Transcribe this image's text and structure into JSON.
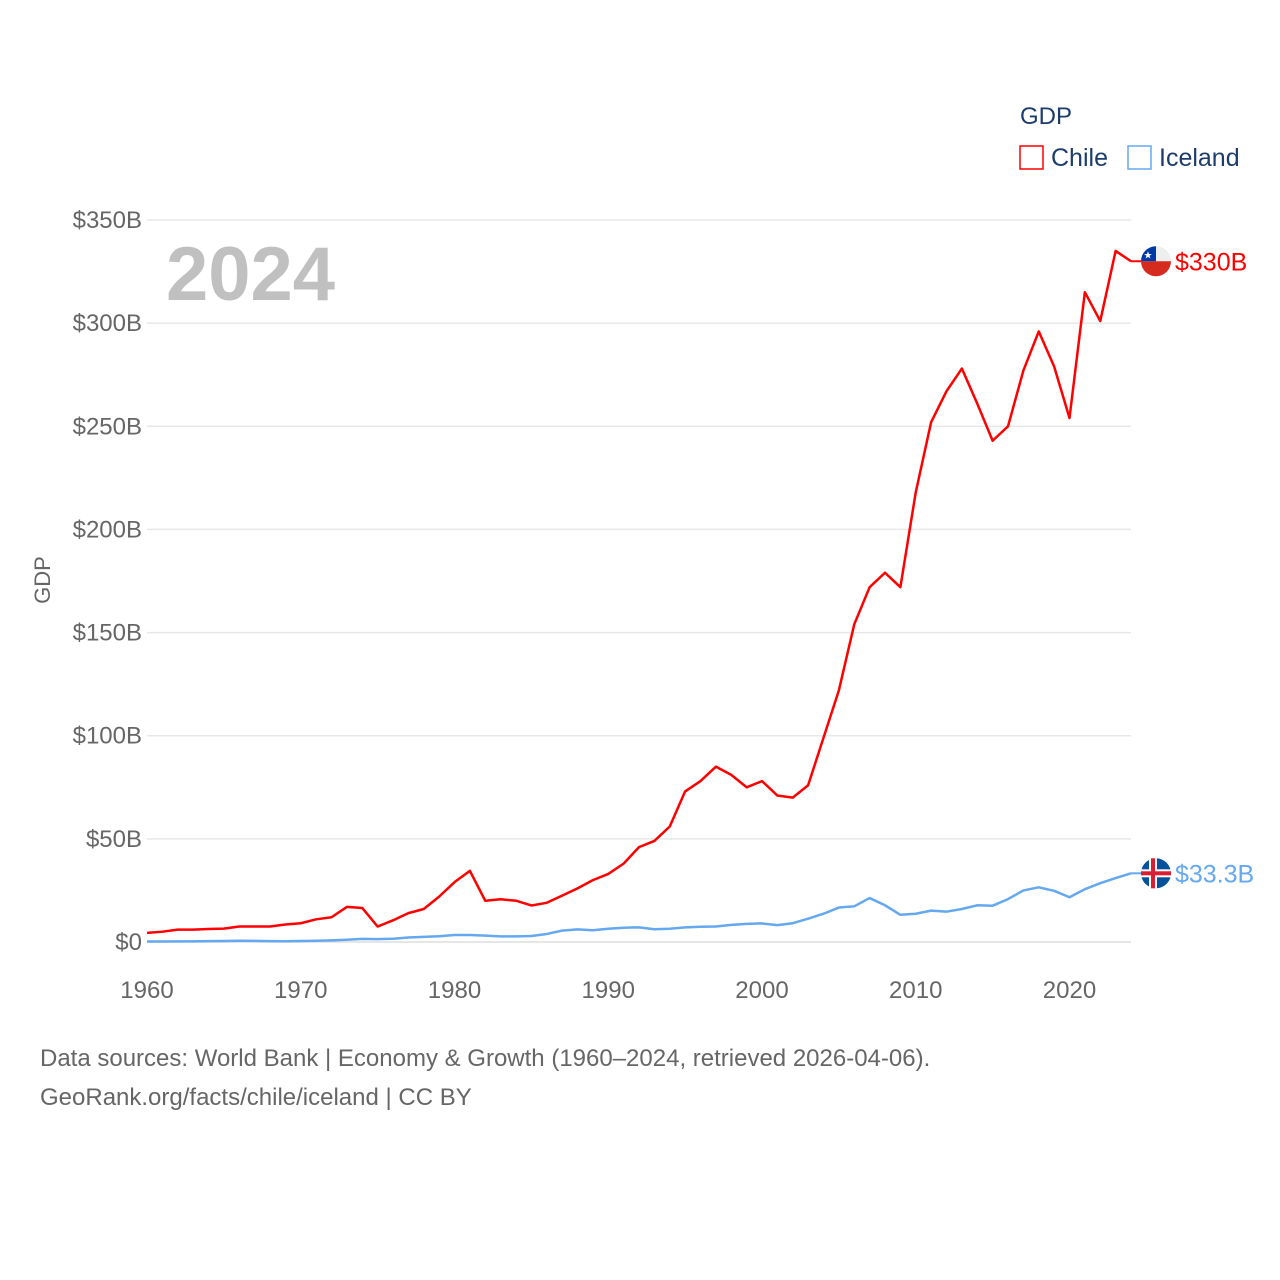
{
  "chart_data": {
    "type": "line",
    "title": "GDP",
    "year_label": "2024",
    "xlabel": "",
    "ylabel": "GDP",
    "xlim": [
      1960,
      2024
    ],
    "ylim": [
      0,
      350
    ],
    "y_unit": "billions USD",
    "x_ticks": [
      1960,
      1970,
      1980,
      1990,
      2000,
      2010,
      2020
    ],
    "y_ticks": [
      0,
      50,
      100,
      150,
      200,
      250,
      300,
      350
    ],
    "y_tick_labels": [
      "$0",
      "$50B",
      "$100B",
      "$150B",
      "$200B",
      "$250B",
      "$300B",
      "$350B"
    ],
    "grid": true,
    "legend_title": "GDP",
    "legend_position": "top-right",
    "x_start": 1960,
    "series": [
      {
        "name": "Chile",
        "color": "#ff0000",
        "end_label": "$330B",
        "flag": "chile-flag",
        "values": [
          4.4,
          5,
          6,
          6,
          6.3,
          6.5,
          7.5,
          7.5,
          7.5,
          8.5,
          9.1,
          11,
          12,
          17,
          16.5,
          7.5,
          10.5,
          14,
          16,
          22,
          29,
          34.5,
          20,
          20.7,
          20,
          17.7,
          19,
          22.5,
          26,
          30,
          33,
          38,
          46,
          49,
          56,
          73,
          78,
          85,
          81,
          75,
          78,
          71,
          70,
          76,
          99,
          122,
          154,
          172,
          179,
          172,
          218,
          252,
          267,
          278,
          261,
          243,
          250,
          277,
          296,
          279,
          254,
          315,
          301,
          335,
          330
        ]
      },
      {
        "name": "Iceland",
        "color": "#64a8f0",
        "end_label": "$33.3B",
        "flag": "iceland-flag",
        "values": [
          0.25,
          0.26,
          0.28,
          0.33,
          0.4,
          0.5,
          0.6,
          0.55,
          0.45,
          0.35,
          0.5,
          0.6,
          0.8,
          1.1,
          1.5,
          1.4,
          1.6,
          2.2,
          2.5,
          2.8,
          3.4,
          3.4,
          3.1,
          2.7,
          2.7,
          2.9,
          3.9,
          5.5,
          6.1,
          5.7,
          6.4,
          6.9,
          7.1,
          6.2,
          6.4,
          7.1,
          7.4,
          7.5,
          8.3,
          8.8,
          9.0,
          8.2,
          9.1,
          11.3,
          13.7,
          16.7,
          17.3,
          21.3,
          17.8,
          13.2,
          13.7,
          15.2,
          14.7,
          16,
          17.8,
          17.6,
          20.8,
          25,
          26.5,
          24.8,
          21.7,
          25.6,
          28.5,
          31,
          33.3
        ]
      }
    ]
  },
  "footer": {
    "line1": "Data sources: World Bank | Economy & Growth (1960–2024, retrieved 2026-04-06).",
    "line2": "GeoRank.org/facts/chile/iceland | CC BY"
  }
}
